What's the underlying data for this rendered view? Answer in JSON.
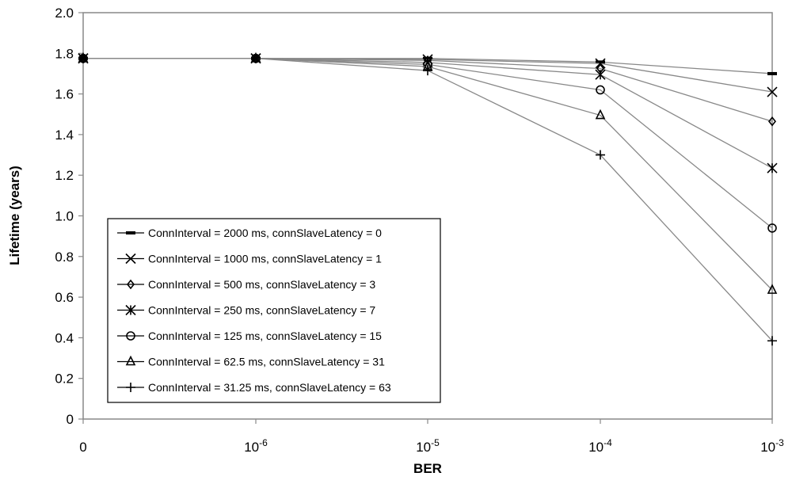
{
  "chart_data": {
    "type": "line",
    "title": "",
    "xlabel": "BER",
    "ylabel": "Lifetime (years)",
    "x_categories": [
      {
        "base": "0",
        "exp": ""
      },
      {
        "base": "10",
        "exp": "-6"
      },
      {
        "base": "10",
        "exp": "-5"
      },
      {
        "base": "10",
        "exp": "-4"
      },
      {
        "base": "10",
        "exp": "-3"
      }
    ],
    "y_ticks": [
      "0",
      "0.2",
      "0.4",
      "0.6",
      "0.8",
      "1.0",
      "1.2",
      "1.4",
      "1.6",
      "1.8",
      "2.0"
    ],
    "ylim": [
      0,
      2.0
    ],
    "grid": false,
    "legend_position": "bottom-left",
    "line_color": "#888888",
    "marker_color": "#000000",
    "series": [
      {
        "name": "ConnInterval = 2000 ms, connSlaveLatency = 0",
        "marker": "dash",
        "values": [
          1.775,
          1.775,
          1.775,
          1.757,
          1.7
        ]
      },
      {
        "name": "ConnInterval = 1000 ms, connSlaveLatency = 1",
        "marker": "x",
        "values": [
          1.775,
          1.775,
          1.77,
          1.75,
          1.61
        ]
      },
      {
        "name": "ConnInterval = 500 ms, connSlaveLatency = 3",
        "marker": "diamond",
        "values": [
          1.775,
          1.775,
          1.765,
          1.725,
          1.465
        ]
      },
      {
        "name": "ConnInterval = 250 ms, connSlaveLatency = 7",
        "marker": "asterisk",
        "values": [
          1.775,
          1.775,
          1.755,
          1.695,
          1.235
        ]
      },
      {
        "name": "ConnInterval = 125 ms, connSlaveLatency = 15",
        "marker": "circle",
        "values": [
          1.775,
          1.775,
          1.745,
          1.62,
          0.94
        ]
      },
      {
        "name": "ConnInterval = 62.5 ms, connSlaveLatency = 31",
        "marker": "triangle",
        "values": [
          1.775,
          1.775,
          1.735,
          1.495,
          0.635
        ]
      },
      {
        "name": "ConnInterval = 31.25 ms, connSlaveLatency = 63",
        "marker": "plus",
        "values": [
          1.775,
          1.775,
          1.715,
          1.3,
          0.385
        ]
      }
    ]
  }
}
